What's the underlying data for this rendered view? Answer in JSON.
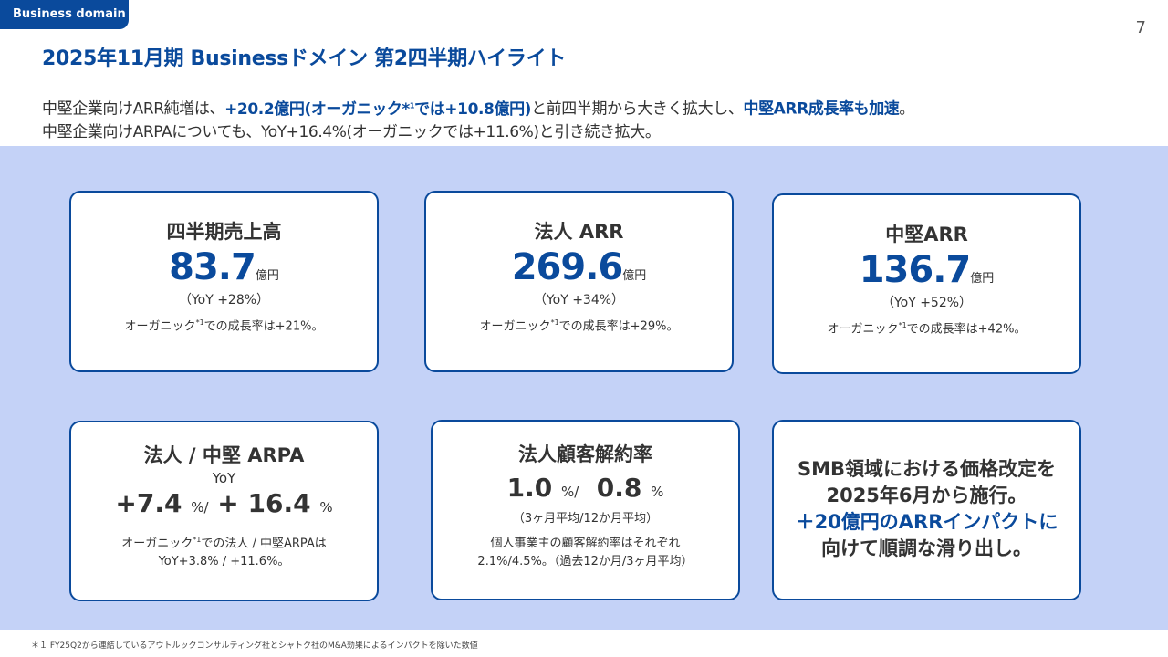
{
  "tag": "Business domain",
  "page_number": "7",
  "title": "2025年11月期 Businessドメイン 第2四半期ハイライト",
  "intro": {
    "l1a": "中堅企業向けARR純増は、",
    "l1b": "+20.2億円(オーガニック*",
    "l1b_sup": "1",
    "l1c": "では+10.8億円)",
    "l1d": "と前四半期から大きく拡大し、",
    "l1e": "中堅ARR成長率も加速",
    "l1f": "。",
    "l2": "中堅企業向けARPAについても、YoY+16.4%(オーガニックでは+11.6%)と引き続き拡大。"
  },
  "cards": {
    "revenue": {
      "title": "四半期売上高",
      "value": "83.7",
      "unit": "億円",
      "yoy": "（YoY +28%）",
      "note_pre": "オーガニック",
      "note_sup": "*1",
      "note_post": "での成長率は+21%。"
    },
    "corp_arr": {
      "title": "法人 ARR",
      "value": "269.6",
      "unit": "億円",
      "yoy": "（YoY +34%）",
      "note_pre": "オーガニック",
      "note_sup": "*1",
      "note_post": "での成長率は+29%。"
    },
    "mid_arr": {
      "title": "中堅ARR",
      "value": "136.7",
      "unit": "億円",
      "yoy": "（YoY +52%）",
      "note_pre": "オーガニック",
      "note_sup": "*1",
      "note_post": "での成長率は+42%。"
    },
    "arpa": {
      "title": "法人 / 中堅 ARPA",
      "subtitle": "YoY",
      "v1": "+7.4",
      "u1": "%",
      "sep": "/",
      "v2": "+ 16.4",
      "u2": "%",
      "note_pre": "オーガニック",
      "note_sup": "*1",
      "note_post": "での法人 / 中堅ARPAは",
      "note_l2": "YoY+3.8% / +11.6%。"
    },
    "churn": {
      "title": "法人顧客解約率",
      "v1": "1.0",
      "u1": "%",
      "sep": "/",
      "v2": "0.8",
      "u2": "%",
      "period": "（3ヶ月平均/12か月平均）",
      "note_l1": "個人事業主の顧客解約率はそれぞれ",
      "note_l2": "2.1%/4.5%。（過去12か月/3ヶ月平均）"
    },
    "smb": {
      "l1": "SMB領域における価格改定を",
      "l2": "2025年6月から施行。",
      "l3": "＋20億円のARRインパクトに",
      "l4": "向けて順調な滑り出し。"
    }
  },
  "footer": "＊１ FY25Q2から連結しているアウトルックコンサルティング社とシャトク社のM&A効果によるインパクトを除いた数値"
}
